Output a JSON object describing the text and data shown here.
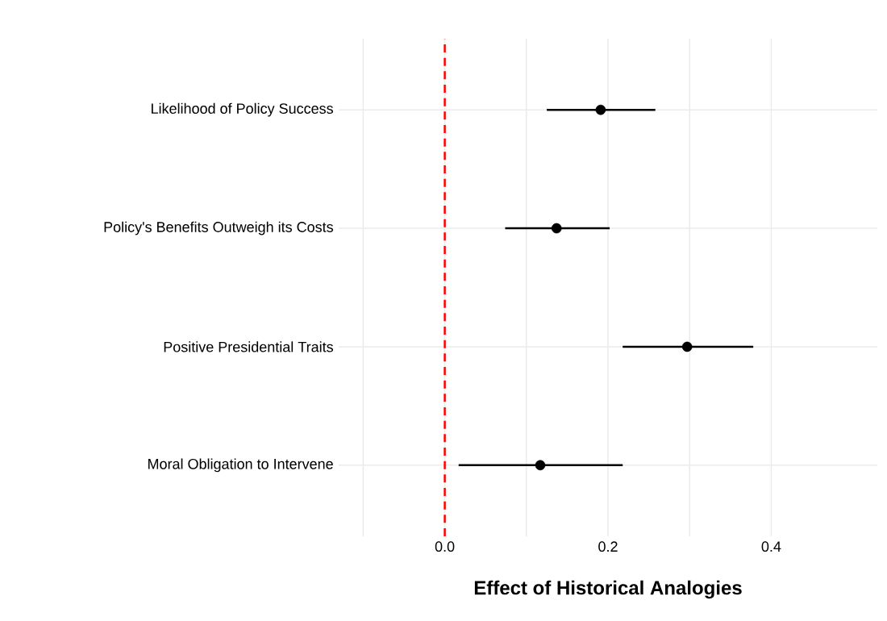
{
  "chart_data": {
    "type": "scatter",
    "orientation": "horizontal",
    "xlabel": "Effect of Historical Analogies",
    "categories": [
      "Likelihood of Policy Success",
      "Policy's Benefits Outweigh its Costs",
      "Positive Presidential Traits",
      "Moral Obligation to Intervene"
    ],
    "values": [
      0.191,
      0.137,
      0.297,
      0.117
    ],
    "errors": [
      [
        0.125,
        0.258
      ],
      [
        0.074,
        0.202
      ],
      [
        0.218,
        0.378
      ],
      [
        0.017,
        0.218
      ]
    ],
    "color": "#000000",
    "xlim": [
      -0.13,
      0.53
    ],
    "xticks": [
      {
        "value": -0.1,
        "label": null
      },
      {
        "value": 0.0,
        "label": "0.0"
      },
      {
        "value": 0.1,
        "label": null
      },
      {
        "value": 0.2,
        "label": "0.2"
      },
      {
        "value": 0.3,
        "label": null
      },
      {
        "value": 0.4,
        "label": "0.4"
      }
    ],
    "ref_lines": [
      {
        "axis": "x",
        "value": 0,
        "color": "#ff0000",
        "line_style": "dashed"
      }
    ],
    "grid": true
  }
}
